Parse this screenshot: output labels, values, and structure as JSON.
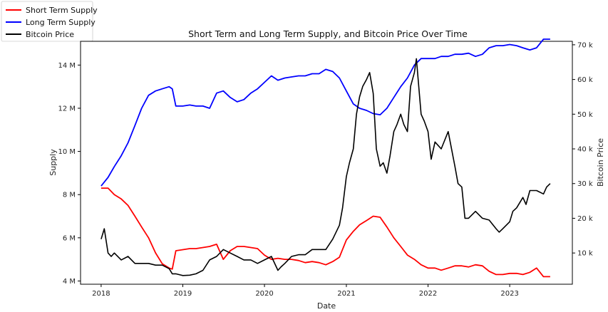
{
  "chart_data": {
    "type": "line",
    "title": "Short Term and Long Term Supply, and Bitcoin Price Over Time",
    "xlabel": "Date",
    "ylabel": "Supply",
    "ylabel_right": "Bitcoin Price",
    "x_ticks": [
      "2018",
      "2019",
      "2020",
      "2021",
      "2022",
      "2023"
    ],
    "ylim": [
      3.85,
      15.1
    ],
    "ylim_right": [
      1,
      71
    ],
    "y_ticks": [
      {
        "value": 4,
        "label": "4 M"
      },
      {
        "value": 6,
        "label": "6 M"
      },
      {
        "value": 8,
        "label": "8 M"
      },
      {
        "value": 10,
        "label": "10 M"
      },
      {
        "value": 12,
        "label": "12 M"
      },
      {
        "value": 14,
        "label": "14 M"
      }
    ],
    "y_ticks_right": [
      {
        "value": 10,
        "label": "10 k"
      },
      {
        "value": 20,
        "label": "20 k"
      },
      {
        "value": 30,
        "label": "30 k"
      },
      {
        "value": 40,
        "label": "40 k"
      },
      {
        "value": 50,
        "label": "50 k"
      },
      {
        "value": 60,
        "label": "60 k"
      },
      {
        "value": 70,
        "label": "70 k"
      }
    ],
    "legend_position": "top-left, outside plot",
    "grid": false,
    "series": [
      {
        "name": "Short Term Supply",
        "color": "#ff0000",
        "axis": "left",
        "x": [
          "2018-01-01",
          "2018-02-01",
          "2018-03-01",
          "2018-04-01",
          "2018-05-01",
          "2018-06-01",
          "2018-07-01",
          "2018-08-01",
          "2018-09-01",
          "2018-10-01",
          "2018-11-01",
          "2018-11-15",
          "2018-12-01",
          "2019-01-01",
          "2019-02-01",
          "2019-03-01",
          "2019-04-01",
          "2019-05-01",
          "2019-06-01",
          "2019-07-01",
          "2019-08-01",
          "2019-09-01",
          "2019-10-01",
          "2019-11-01",
          "2019-12-01",
          "2020-01-01",
          "2020-02-01",
          "2020-03-01",
          "2020-04-01",
          "2020-05-01",
          "2020-06-01",
          "2020-07-01",
          "2020-08-01",
          "2020-09-01",
          "2020-10-01",
          "2020-11-01",
          "2020-12-01",
          "2021-01-01",
          "2021-02-01",
          "2021-03-01",
          "2021-04-01",
          "2021-05-01",
          "2021-06-01",
          "2021-07-01",
          "2021-08-01",
          "2021-09-01",
          "2021-10-01",
          "2021-11-01",
          "2021-12-01",
          "2022-01-01",
          "2022-02-01",
          "2022-03-01",
          "2022-04-01",
          "2022-05-01",
          "2022-06-01",
          "2022-07-01",
          "2022-08-01",
          "2022-09-01",
          "2022-10-01",
          "2022-11-01",
          "2022-12-01",
          "2023-01-01",
          "2023-02-01",
          "2023-03-01",
          "2023-04-01",
          "2023-05-01",
          "2023-06-01",
          "2023-07-01"
        ],
        "values": [
          8.3,
          8.3,
          8.0,
          7.8,
          7.5,
          7.0,
          6.5,
          6.0,
          5.3,
          4.8,
          4.6,
          4.55,
          5.4,
          5.45,
          5.5,
          5.5,
          5.55,
          5.6,
          5.7,
          5.0,
          5.4,
          5.6,
          5.6,
          5.55,
          5.5,
          5.2,
          5.0,
          5.05,
          5.0,
          5.0,
          4.95,
          4.85,
          4.9,
          4.85,
          4.75,
          4.9,
          5.1,
          5.9,
          6.3,
          6.6,
          6.8,
          7.0,
          6.95,
          6.5,
          6.0,
          5.6,
          5.2,
          5.0,
          4.75,
          4.6,
          4.6,
          4.5,
          4.6,
          4.7,
          4.7,
          4.65,
          4.75,
          4.7,
          4.45,
          4.3,
          4.3,
          4.35,
          4.35,
          4.3,
          4.4,
          4.6,
          4.2,
          4.2
        ]
      },
      {
        "name": "Long Term Supply",
        "color": "#0000ff",
        "axis": "left",
        "x": [
          "2018-01-01",
          "2018-02-01",
          "2018-03-01",
          "2018-04-01",
          "2018-05-01",
          "2018-06-01",
          "2018-07-01",
          "2018-08-01",
          "2018-09-01",
          "2018-10-01",
          "2018-11-01",
          "2018-11-15",
          "2018-12-01",
          "2019-01-01",
          "2019-02-01",
          "2019-03-01",
          "2019-04-01",
          "2019-05-01",
          "2019-06-01",
          "2019-07-01",
          "2019-08-01",
          "2019-09-01",
          "2019-10-01",
          "2019-11-01",
          "2019-12-01",
          "2020-01-01",
          "2020-02-01",
          "2020-03-01",
          "2020-04-01",
          "2020-05-01",
          "2020-06-01",
          "2020-07-01",
          "2020-08-01",
          "2020-09-01",
          "2020-10-01",
          "2020-11-01",
          "2020-12-01",
          "2021-01-01",
          "2021-02-01",
          "2021-03-01",
          "2021-04-01",
          "2021-05-01",
          "2021-06-01",
          "2021-07-01",
          "2021-08-01",
          "2021-09-01",
          "2021-10-01",
          "2021-11-01",
          "2021-12-01",
          "2022-01-01",
          "2022-02-01",
          "2022-03-01",
          "2022-04-01",
          "2022-05-01",
          "2022-06-01",
          "2022-07-01",
          "2022-08-01",
          "2022-09-01",
          "2022-10-01",
          "2022-11-01",
          "2022-12-01",
          "2023-01-01",
          "2023-02-01",
          "2023-03-01",
          "2023-04-01",
          "2023-05-01",
          "2023-06-01",
          "2023-07-01"
        ],
        "values": [
          8.4,
          8.8,
          9.3,
          9.8,
          10.4,
          11.2,
          12.0,
          12.6,
          12.8,
          12.9,
          13.0,
          12.9,
          12.1,
          12.1,
          12.15,
          12.1,
          12.1,
          12.0,
          12.7,
          12.8,
          12.5,
          12.3,
          12.4,
          12.7,
          12.9,
          13.2,
          13.5,
          13.3,
          13.4,
          13.45,
          13.5,
          13.5,
          13.6,
          13.6,
          13.8,
          13.7,
          13.4,
          12.8,
          12.2,
          12.0,
          11.9,
          11.75,
          11.7,
          12.0,
          12.5,
          13.0,
          13.4,
          14.0,
          14.3,
          14.3,
          14.3,
          14.4,
          14.4,
          14.5,
          14.5,
          14.55,
          14.4,
          14.5,
          14.8,
          14.9,
          14.9,
          14.95,
          14.9,
          14.8,
          14.7,
          14.8,
          15.2,
          15.2
        ]
      },
      {
        "name": "Bitcoin Price",
        "color": "#000000",
        "axis": "right",
        "x": [
          "2018-01-01",
          "2018-01-15",
          "2018-02-01",
          "2018-02-15",
          "2018-03-01",
          "2018-04-01",
          "2018-05-01",
          "2018-06-01",
          "2018-07-01",
          "2018-08-01",
          "2018-09-01",
          "2018-10-01",
          "2018-11-01",
          "2018-11-15",
          "2018-12-01",
          "2019-01-01",
          "2019-02-01",
          "2019-03-01",
          "2019-04-01",
          "2019-05-01",
          "2019-06-01",
          "2019-07-01",
          "2019-08-01",
          "2019-09-01",
          "2019-10-01",
          "2019-11-01",
          "2019-12-01",
          "2020-01-01",
          "2020-02-01",
          "2020-03-01",
          "2020-03-15",
          "2020-04-01",
          "2020-05-01",
          "2020-06-01",
          "2020-07-01",
          "2020-08-01",
          "2020-09-01",
          "2020-10-01",
          "2020-11-01",
          "2020-12-01",
          "2020-12-15",
          "2021-01-01",
          "2021-01-15",
          "2021-02-01",
          "2021-02-15",
          "2021-03-01",
          "2021-03-15",
          "2021-04-01",
          "2021-04-15",
          "2021-05-01",
          "2021-05-15",
          "2021-06-01",
          "2021-06-15",
          "2021-07-01",
          "2021-07-15",
          "2021-08-01",
          "2021-08-15",
          "2021-09-01",
          "2021-09-15",
          "2021-10-01",
          "2021-10-15",
          "2021-11-01",
          "2021-11-10",
          "2021-12-01",
          "2021-12-15",
          "2022-01-01",
          "2022-01-15",
          "2022-02-01",
          "2022-03-01",
          "2022-04-01",
          "2022-05-01",
          "2022-05-15",
          "2022-06-01",
          "2022-06-15",
          "2022-07-01",
          "2022-08-01",
          "2022-09-01",
          "2022-10-01",
          "2022-11-01",
          "2022-11-15",
          "2022-12-01",
          "2023-01-01",
          "2023-01-15",
          "2023-02-01",
          "2023-03-01",
          "2023-03-15",
          "2023-04-01",
          "2023-05-01",
          "2023-06-01",
          "2023-06-15",
          "2023-07-01"
        ],
        "values": [
          14,
          17,
          10,
          9,
          10,
          8,
          9,
          7,
          7,
          7,
          6.5,
          6.5,
          5.5,
          4,
          4,
          3.5,
          3.6,
          4,
          5,
          8,
          9,
          11,
          10,
          9,
          8,
          8,
          7,
          8,
          9,
          5,
          6,
          7,
          9,
          9.5,
          9.5,
          11,
          11,
          11,
          14,
          18,
          23,
          32,
          36,
          40,
          50,
          55,
          58,
          60,
          62,
          56,
          40,
          35,
          36,
          33,
          38,
          45,
          47,
          50,
          47,
          45,
          58,
          62,
          66,
          50,
          48,
          45,
          37,
          42,
          40,
          45,
          35,
          30,
          29,
          20,
          20,
          22,
          20,
          19.5,
          17,
          16,
          17,
          19,
          22,
          23,
          26,
          24,
          28,
          28,
          27,
          29,
          30
        ]
      }
    ]
  }
}
